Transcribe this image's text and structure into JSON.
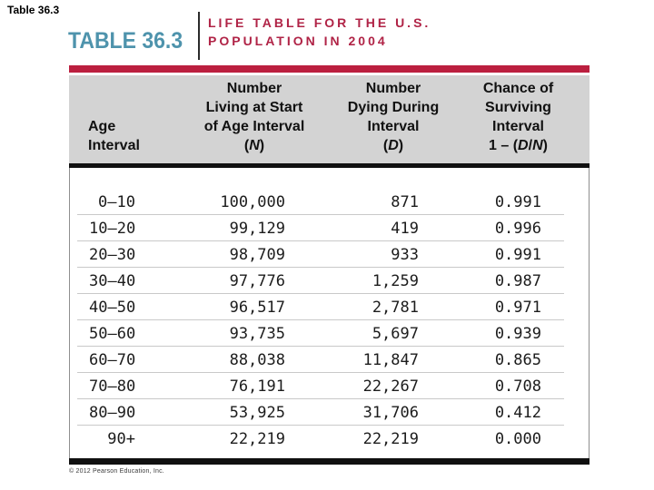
{
  "page_label": "Table 36.3",
  "title_block": {
    "table_number": "TABLE 36.3",
    "title_line1": "LIFE TABLE FOR THE U.S.",
    "title_line2": "POPULATION IN 2004"
  },
  "colors": {
    "teal_accent": "#4e93ac",
    "crimson_text": "#b02346",
    "crimson_bar": "#bb1f3f",
    "header_bg": "#d3d3d3"
  },
  "table": {
    "columns": [
      {
        "id": "age",
        "lines": [
          "Age",
          "Interval"
        ]
      },
      {
        "id": "n",
        "lines": [
          "Number",
          "Living at Start",
          "of Age Interval",
          "(N)"
        ]
      },
      {
        "id": "d",
        "lines": [
          "Number",
          "Dying During",
          "Interval",
          "(D)"
        ]
      },
      {
        "id": "chance",
        "lines": [
          "Chance of",
          "Surviving",
          "Interval",
          "1 – (D/N)"
        ]
      }
    ],
    "rows": [
      [
        "0–10",
        "100,000",
        "871",
        "0.991"
      ],
      [
        "10–20",
        "99,129",
        "419",
        "0.996"
      ],
      [
        "20–30",
        "98,709",
        "933",
        "0.991"
      ],
      [
        "30–40",
        "97,776",
        "1,259",
        "0.987"
      ],
      [
        "40–50",
        "96,517",
        "2,781",
        "0.971"
      ],
      [
        "50–60",
        "93,735",
        "5,697",
        "0.939"
      ],
      [
        "60–70",
        "88,038",
        "11,847",
        "0.865"
      ],
      [
        "70–80",
        "76,191",
        "22,267",
        "0.708"
      ],
      [
        "80–90",
        "53,925",
        "31,706",
        "0.412"
      ],
      [
        "90+",
        "22,219",
        "22,219",
        "0.000"
      ]
    ]
  },
  "footer": {
    "copyright": "© 2012 Pearson Education, Inc."
  },
  "chart_data": {
    "type": "table",
    "title": "LIFE TABLE FOR THE U.S. POPULATION IN 2004",
    "table_number": "TABLE 36.3",
    "columns": [
      "Age Interval",
      "Number Living at Start of Age Interval (N)",
      "Number Dying During Interval (D)",
      "Chance of Surviving Interval 1 – (D/N)"
    ],
    "age_intervals": [
      "0–10",
      "10–20",
      "20–30",
      "30–40",
      "40–50",
      "50–60",
      "60–70",
      "70–80",
      "80–90",
      "90+"
    ],
    "number_living_at_start_N": [
      100000,
      99129,
      98709,
      97776,
      96517,
      93735,
      88038,
      76191,
      53925,
      22219
    ],
    "number_dying_during_interval_D": [
      871,
      419,
      933,
      1259,
      2781,
      5697,
      11847,
      22267,
      31706,
      22219
    ],
    "chance_of_surviving_interval": [
      0.991,
      0.996,
      0.991,
      0.987,
      0.971,
      0.939,
      0.865,
      0.708,
      0.412,
      0.0
    ]
  }
}
